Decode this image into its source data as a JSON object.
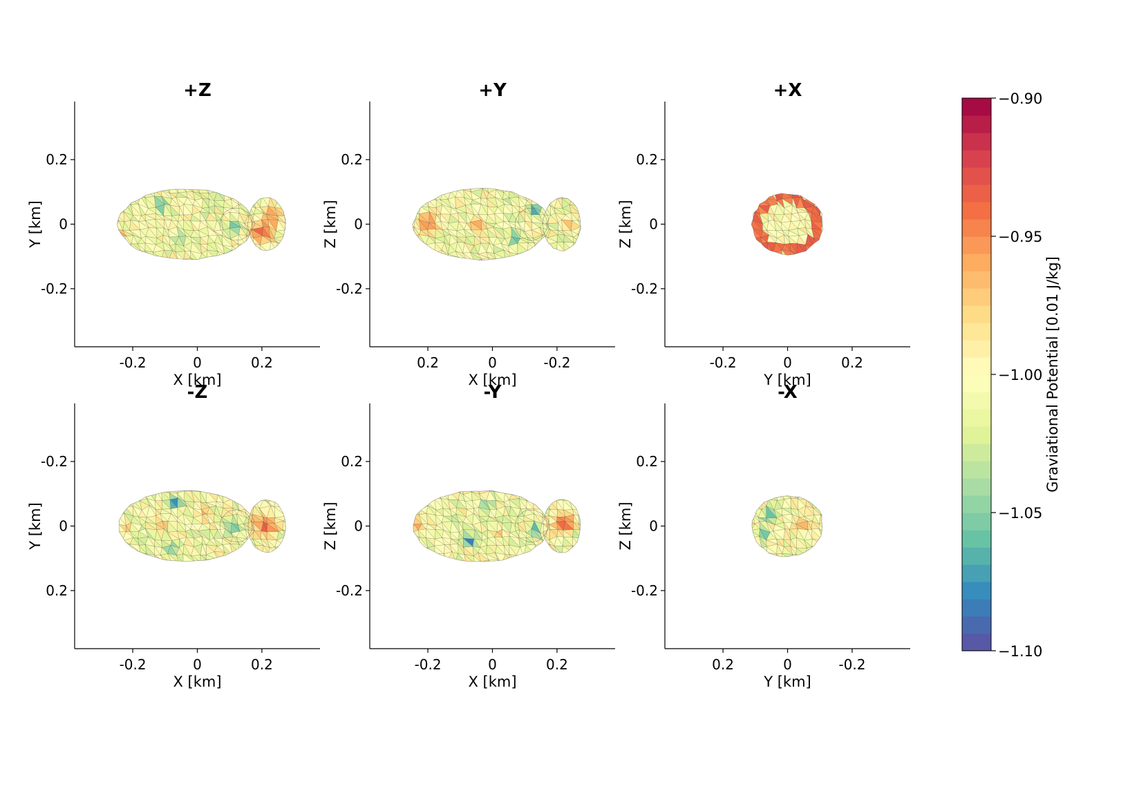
{
  "chart_data": {
    "type": "heatmap",
    "description_free": true,
    "panels": [
      {
        "title": "+Z",
        "xlabel": "X [km]",
        "ylabel": "Y [km]",
        "xlim": [
          -0.38,
          0.38
        ],
        "ylim": [
          -0.38,
          0.38
        ],
        "xticks": [
          {
            "v": -0.2,
            "label": "-0.2"
          },
          {
            "v": 0,
            "label": "0"
          },
          {
            "v": 0.2,
            "label": "0.2"
          }
        ],
        "yticks": [
          {
            "v": 0.2,
            "label": "0.2"
          },
          {
            "v": 0,
            "label": "0"
          },
          {
            "v": -0.2,
            "label": "-0.2"
          }
        ],
        "shape": "contact-binary-long",
        "lobe_side": "right",
        "patches": [
          {
            "x": 0.2,
            "y": -0.02,
            "r": 0.055,
            "value": -0.93
          },
          {
            "x": 0.23,
            "y": 0.03,
            "r": 0.045,
            "value": -0.95
          },
          {
            "x": -0.24,
            "y": -0.03,
            "r": 0.03,
            "value": -0.96
          },
          {
            "x": -0.11,
            "y": 0.06,
            "r": 0.035,
            "value": -1.07
          },
          {
            "x": 0.11,
            "y": -0.01,
            "r": 0.035,
            "value": -1.07
          },
          {
            "x": -0.05,
            "y": -0.05,
            "r": 0.04,
            "value": -1.04
          },
          {
            "x": 0.03,
            "y": 0.05,
            "r": 0.035,
            "value": -1.03
          }
        ]
      },
      {
        "title": "+Y",
        "xlabel": "X [km]",
        "ylabel": "Z [km]",
        "xlim": [
          0.38,
          -0.38
        ],
        "ylim": [
          -0.38,
          0.38
        ],
        "xticks": [
          {
            "v": 0.2,
            "label": "0.2"
          },
          {
            "v": 0,
            "label": "0"
          },
          {
            "v": -0.2,
            "label": "-0.2"
          }
        ],
        "yticks": [
          {
            "v": 0.2,
            "label": "0.2"
          },
          {
            "v": 0,
            "label": "0"
          },
          {
            "v": -0.2,
            "label": "-0.2"
          }
        ],
        "shape": "contact-binary-long",
        "lobe_side": "left",
        "patches": [
          {
            "x": 0.2,
            "y": 0.0,
            "r": 0.05,
            "value": -0.94
          },
          {
            "x": 0.05,
            "y": 0.0,
            "r": 0.035,
            "value": -0.96
          },
          {
            "x": -0.13,
            "y": 0.04,
            "r": 0.035,
            "value": -1.07
          },
          {
            "x": -0.07,
            "y": -0.04,
            "r": 0.035,
            "value": -1.07
          },
          {
            "x": -0.24,
            "y": 0.0,
            "r": 0.025,
            "value": -0.96
          },
          {
            "x": -0.03,
            "y": 0.06,
            "r": 0.03,
            "value": -1.03
          }
        ]
      },
      {
        "title": "+X",
        "xlabel": "Y [km]",
        "ylabel": "Z [km]",
        "xlim": [
          -0.38,
          0.38
        ],
        "ylim": [
          -0.38,
          0.38
        ],
        "xticks": [
          {
            "v": -0.2,
            "label": "-0.2"
          },
          {
            "v": 0,
            "label": "0"
          },
          {
            "v": 0.2,
            "label": "0.2"
          }
        ],
        "yticks": [
          {
            "v": 0.2,
            "label": "0.2"
          },
          {
            "v": 0,
            "label": "0"
          },
          {
            "v": -0.2,
            "label": "-0.2"
          }
        ],
        "shape": "round",
        "ring_value": -0.94,
        "center_value": -1.0
      },
      {
        "title": "-Z",
        "xlabel": "X [km]",
        "ylabel": "Y [km]",
        "xlim": [
          -0.38,
          0.38
        ],
        "ylim": [
          0.38,
          -0.38
        ],
        "xticks": [
          {
            "v": -0.2,
            "label": "-0.2"
          },
          {
            "v": 0,
            "label": "0"
          },
          {
            "v": 0.2,
            "label": "0.2"
          }
        ],
        "yticks": [
          {
            "v": -0.2,
            "label": "-0.2"
          },
          {
            "v": 0,
            "label": "0"
          },
          {
            "v": 0.2,
            "label": "0.2"
          }
        ],
        "shape": "contact-binary-long",
        "lobe_side": "right",
        "patches": [
          {
            "x": 0.21,
            "y": 0.0,
            "r": 0.055,
            "value": -0.93
          },
          {
            "x": -0.07,
            "y": -0.07,
            "r": 0.03,
            "value": -1.09
          },
          {
            "x": 0.11,
            "y": 0.0,
            "r": 0.035,
            "value": -1.07
          },
          {
            "x": -0.08,
            "y": 0.07,
            "r": 0.03,
            "value": -1.06
          },
          {
            "x": -0.11,
            "y": 0.0,
            "r": 0.035,
            "value": -0.96
          },
          {
            "x": 0.02,
            "y": -0.04,
            "r": 0.03,
            "value": -0.96
          },
          {
            "x": -0.22,
            "y": 0.0,
            "r": 0.03,
            "value": -0.96
          },
          {
            "x": -0.17,
            "y": 0.04,
            "r": 0.04,
            "value": -1.03
          }
        ]
      },
      {
        "title": "-Y",
        "xlabel": "X [km]",
        "ylabel": "Z [km]",
        "xlim": [
          -0.38,
          0.38
        ],
        "ylim": [
          -0.38,
          0.38
        ],
        "xticks": [
          {
            "v": -0.2,
            "label": "-0.2"
          },
          {
            "v": 0,
            "label": "0"
          },
          {
            "v": 0.2,
            "label": "0.2"
          }
        ],
        "yticks": [
          {
            "v": 0.2,
            "label": "0.2"
          },
          {
            "v": 0,
            "label": "0"
          },
          {
            "v": -0.2,
            "label": "-0.2"
          }
        ],
        "shape": "contact-binary-long",
        "lobe_side": "right",
        "patches": [
          {
            "x": 0.22,
            "y": 0.01,
            "r": 0.055,
            "value": -0.93
          },
          {
            "x": -0.07,
            "y": -0.045,
            "r": 0.03,
            "value": -1.09
          },
          {
            "x": 0.13,
            "y": -0.01,
            "r": 0.035,
            "value": -1.07
          },
          {
            "x": -0.02,
            "y": 0.06,
            "r": 0.035,
            "value": -1.05
          },
          {
            "x": -0.23,
            "y": 0.0,
            "r": 0.03,
            "value": -0.96
          },
          {
            "x": 0.02,
            "y": -0.02,
            "r": 0.03,
            "value": -0.96
          },
          {
            "x": -0.12,
            "y": 0.02,
            "r": 0.04,
            "value": -1.03
          }
        ]
      },
      {
        "title": "-X",
        "xlabel": "Y [km]",
        "ylabel": "Z [km]",
        "xlim": [
          0.38,
          -0.38
        ],
        "ylim": [
          -0.38,
          0.38
        ],
        "xticks": [
          {
            "v": 0.2,
            "label": "0.2"
          },
          {
            "v": 0,
            "label": "0"
          },
          {
            "v": -0.2,
            "label": "-0.2"
          }
        ],
        "yticks": [
          {
            "v": 0.2,
            "label": "0.2"
          },
          {
            "v": 0,
            "label": "0"
          },
          {
            "v": -0.2,
            "label": "-0.2"
          }
        ],
        "shape": "round",
        "patches": [
          {
            "x": -0.04,
            "y": 0.005,
            "r": 0.035,
            "value": -0.96
          },
          {
            "x": 0.06,
            "y": 0.03,
            "r": 0.03,
            "value": -1.07
          },
          {
            "x": 0.07,
            "y": -0.03,
            "r": 0.03,
            "value": -1.06
          }
        ]
      }
    ],
    "colorbar": {
      "label": "Graviational Potential [0.01 J/kg]",
      "vmin": -1.1,
      "vmax": -0.9,
      "levels": 32,
      "ticks": [
        {
          "v": -0.9,
          "label": "−0.90"
        },
        {
          "v": -0.95,
          "label": "−0.95"
        },
        {
          "v": -1.0,
          "label": "−1.00"
        },
        {
          "v": -1.05,
          "label": "−1.05"
        },
        {
          "v": -1.1,
          "label": "−1.10"
        }
      ],
      "colormap": "Spectral_r"
    }
  }
}
